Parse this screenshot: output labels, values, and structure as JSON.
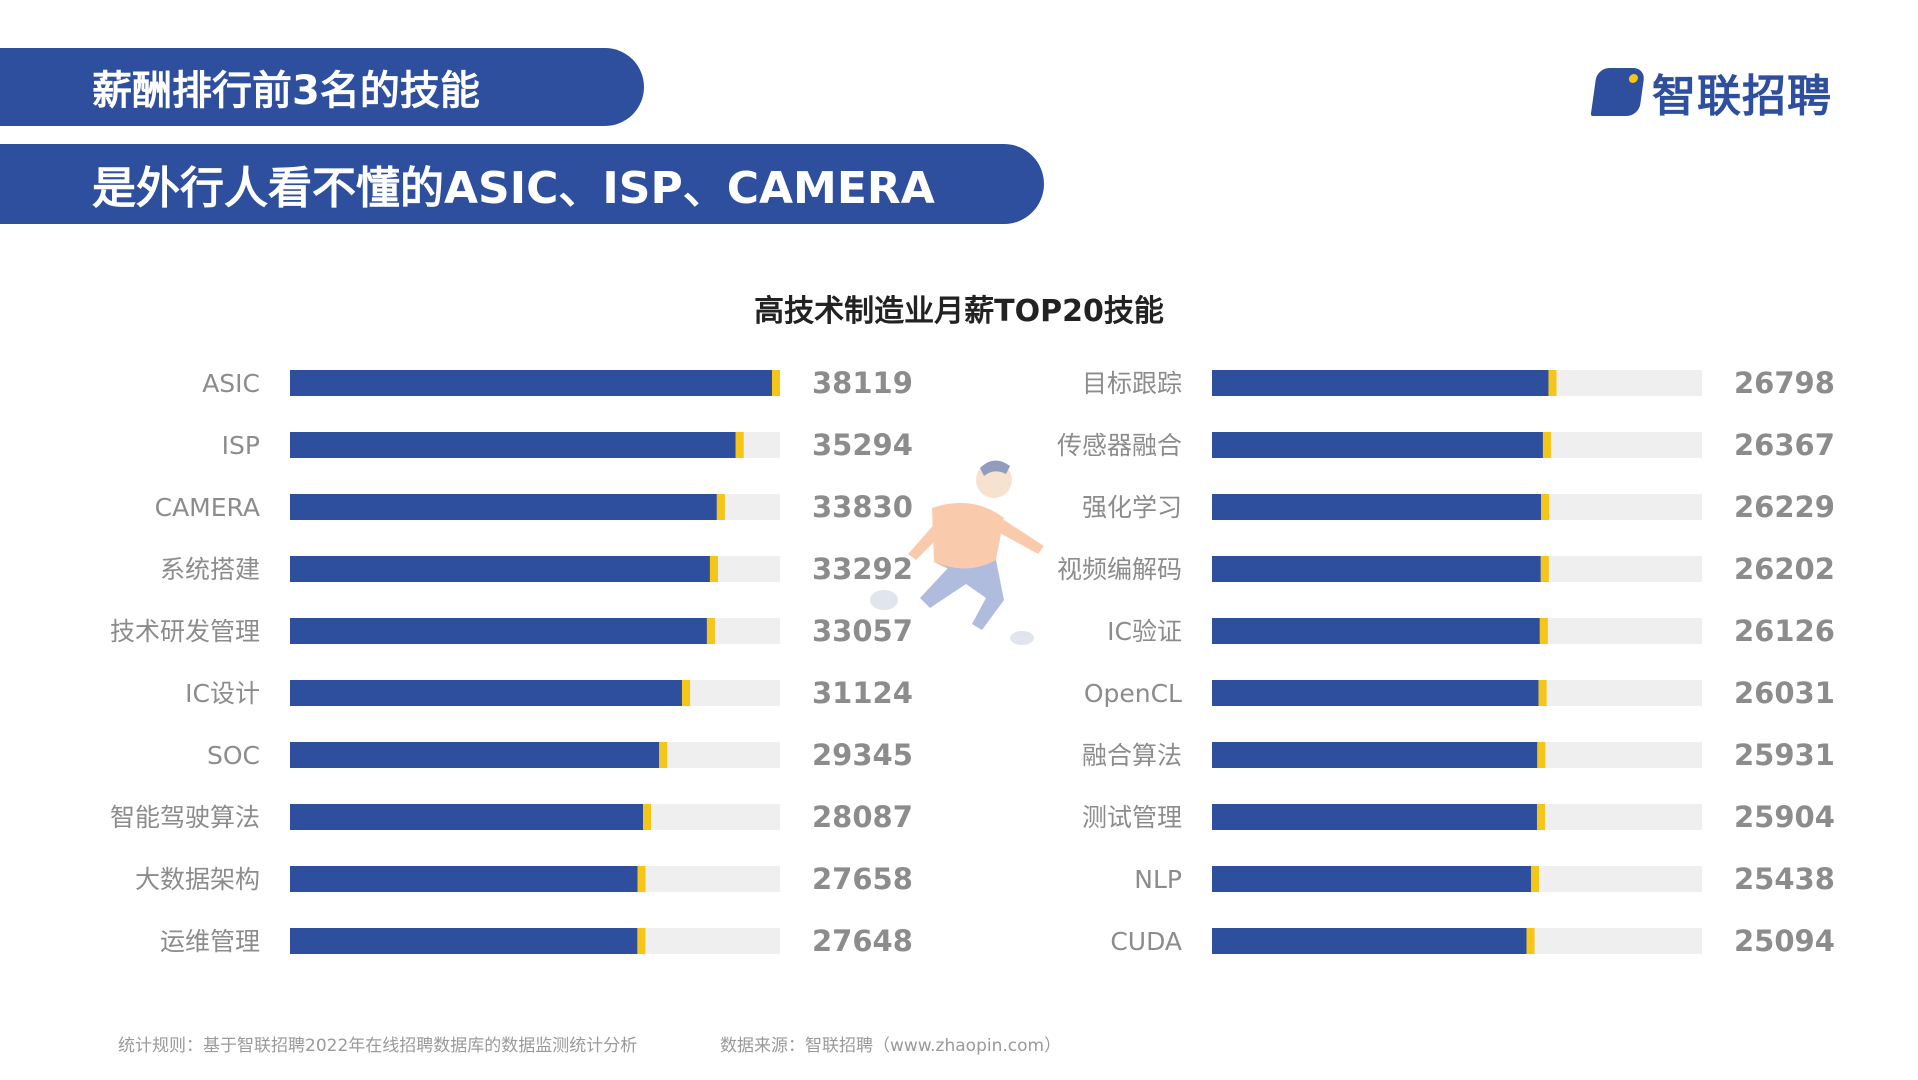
{
  "header": {
    "line1": "薪酬排行前3名的技能",
    "line2": "是外行人看不懂的ASIC、ISP、CAMERA"
  },
  "logo": {
    "text": "智联招聘"
  },
  "colors": {
    "bar": "#2E4F9E",
    "accent": "#F5C518",
    "track": "#EFEFEF",
    "label": "#8C8C8C"
  },
  "footer": {
    "rule": "统计规则：基于智联招聘2022年在线招聘数据库的数据监测统计分析",
    "source": "数据来源：智联招聘（www.zhaopin.com）"
  },
  "chart_data": {
    "type": "bar",
    "title": "高技术制造业月薪TOP20技能",
    "orientation": "horizontal",
    "xlim": [
      0,
      38119
    ],
    "panels": [
      {
        "categories": [
          "ASIC",
          "ISP",
          "CAMERA",
          "系统搭建",
          "技术研发管理",
          "IC设计",
          "SOC",
          "智能驾驶算法",
          "大数据架构",
          "运维管理"
        ],
        "values": [
          38119,
          35294,
          33830,
          33292,
          33057,
          31124,
          29345,
          28087,
          27658,
          27648
        ]
      },
      {
        "categories": [
          "目标跟踪",
          "传感器融合",
          "强化学习",
          "视频编解码",
          "IC验证",
          "OpenCL",
          "融合算法",
          "测试管理",
          "NLP",
          "CUDA"
        ],
        "values": [
          26798,
          26367,
          26229,
          26202,
          26126,
          26031,
          25931,
          25904,
          25438,
          25094
        ]
      }
    ]
  }
}
